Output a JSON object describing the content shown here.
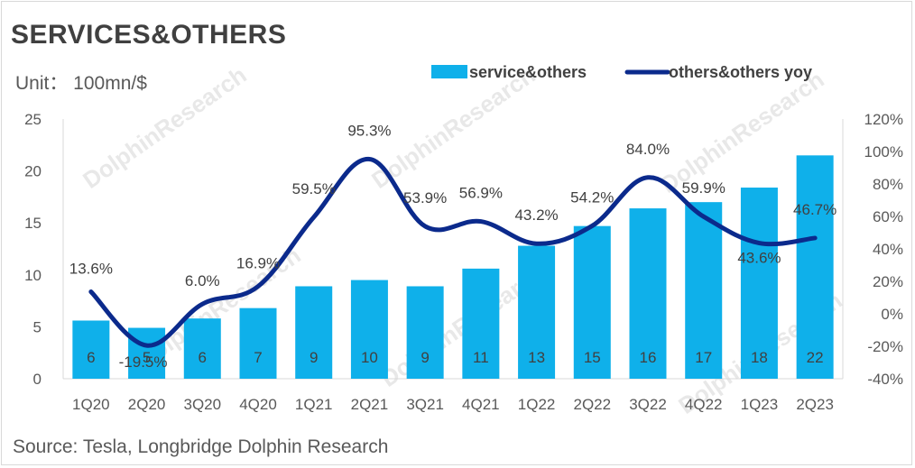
{
  "title": "SERVICES&OTHERS",
  "unit": "Unit： 100mn/$",
  "source": "Source: Tesla, Longbridge Dolphin Research",
  "watermark": "DolphinResearch",
  "colors": {
    "bar": "#0fb0ea",
    "line": "#0b2a8c",
    "grid": "#d9d9d9",
    "text": "#595959"
  },
  "chart_data": {
    "type": "bar",
    "title": "SERVICES&OTHERS",
    "categories": [
      "1Q20",
      "2Q20",
      "3Q20",
      "4Q20",
      "1Q21",
      "2Q21",
      "3Q21",
      "4Q21",
      "1Q22",
      "2Q22",
      "3Q22",
      "4Q22",
      "1Q23",
      "2Q23"
    ],
    "series": [
      {
        "name": "service&others",
        "type": "bar",
        "axis": "left",
        "values": [
          5.6,
          4.9,
          5.8,
          6.8,
          8.9,
          9.5,
          8.9,
          10.6,
          12.8,
          14.7,
          16.4,
          17.0,
          18.4,
          21.5
        ],
        "labels": [
          "6",
          "5",
          "6",
          "7",
          "9",
          "10",
          "9",
          "11",
          "13",
          "15",
          "16",
          "17",
          "18",
          "22"
        ]
      },
      {
        "name": "others&others yoy",
        "type": "line",
        "axis": "right",
        "values": [
          13.6,
          -19.5,
          6.0,
          16.9,
          59.5,
          95.3,
          53.9,
          56.9,
          43.2,
          54.2,
          84.0,
          59.9,
          43.6,
          46.7
        ],
        "labels": [
          "13.6%",
          "-19.5%",
          "6.0%",
          "16.9%",
          "59.5%",
          "95.3%",
          "53.9%",
          "56.9%",
          "43.2%",
          "54.2%",
          "84.0%",
          "59.9%",
          "43.6%",
          "46.7%"
        ]
      }
    ],
    "y_left": {
      "min": 0,
      "max": 25,
      "ticks": [
        "0",
        "5",
        "10",
        "15",
        "20",
        "25"
      ]
    },
    "y_right": {
      "min": -40,
      "max": 120,
      "ticks": [
        "-40%",
        "-20%",
        "0%",
        "20%",
        "40%",
        "60%",
        "80%",
        "100%",
        "120%"
      ]
    },
    "legend_position": "top-right",
    "grid": false
  }
}
